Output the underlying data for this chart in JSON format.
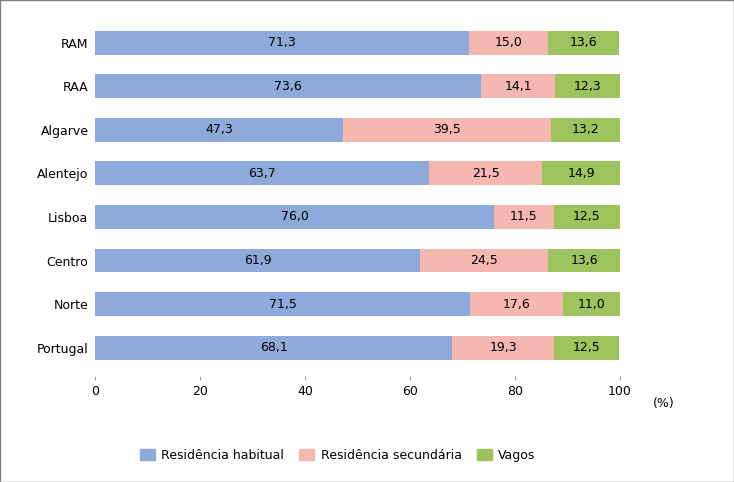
{
  "categories": [
    "Portugal",
    "Norte",
    "Centro",
    "Lisboa",
    "Alentejo",
    "Algarve",
    "RAA",
    "RAM"
  ],
  "residencia_habitual": [
    68.1,
    71.5,
    61.9,
    76.0,
    63.7,
    47.3,
    73.6,
    71.3
  ],
  "residencia_secundaria": [
    19.3,
    17.6,
    24.5,
    11.5,
    21.5,
    39.5,
    14.1,
    15.0
  ],
  "vagos": [
    12.5,
    11.0,
    13.6,
    12.5,
    14.9,
    13.2,
    12.3,
    13.6
  ],
  "color_habitual": "#8eaadb",
  "color_secundaria": "#f4b8b0",
  "color_vagos": "#9dc35e",
  "legend_labels": [
    "Residência habitual",
    "Residência secundária",
    "Vagos"
  ],
  "xlabel_suffix": "(%)",
  "xlim": [
    0,
    105
  ],
  "xticks": [
    0,
    20,
    40,
    60,
    80,
    100
  ],
  "background_color": "#ffffff",
  "plot_background": "#ffffff",
  "bar_height": 0.55,
  "label_fontsize": 9,
  "tick_fontsize": 9,
  "legend_fontsize": 9,
  "border_color": "#808080"
}
